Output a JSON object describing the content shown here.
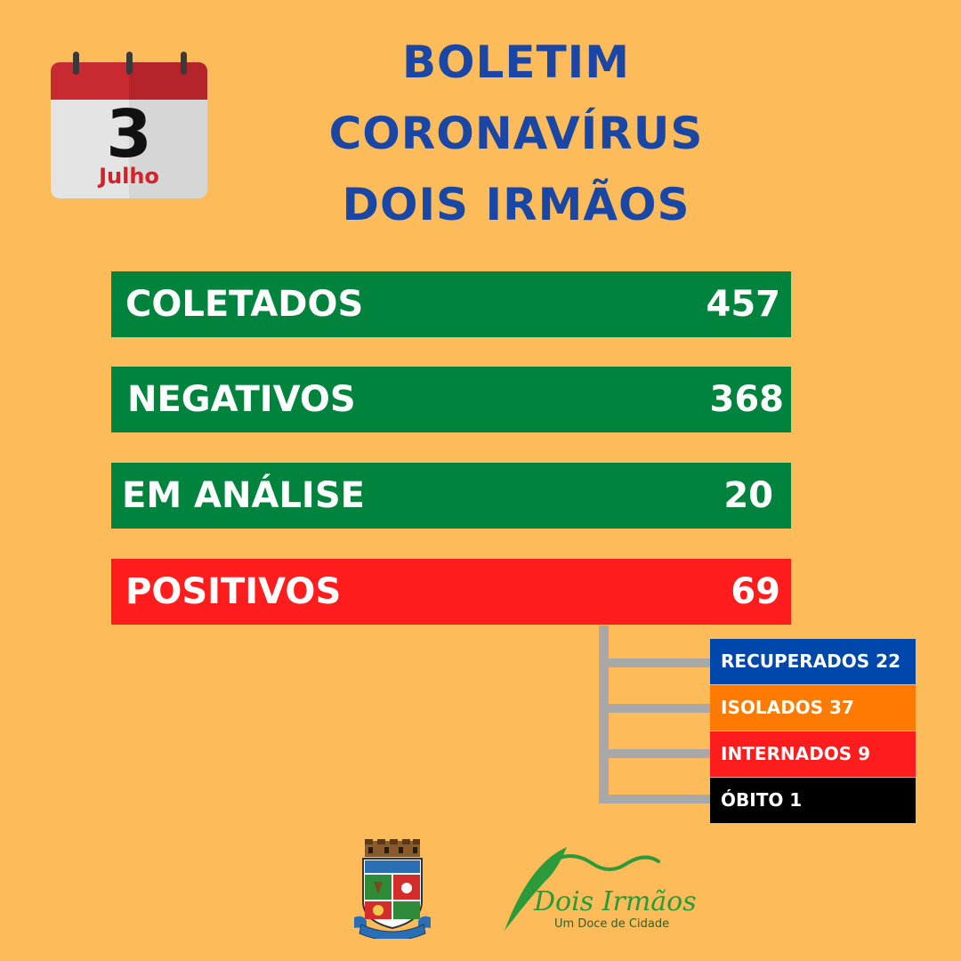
{
  "date": {
    "day": "3",
    "month": "Julho"
  },
  "title": {
    "line1": "BOLETIM",
    "line2": "CORONAVÍRUS",
    "line3": "DOIS IRMÃOS"
  },
  "stats": {
    "coletados": {
      "label": "COLETADOS",
      "value": "457"
    },
    "negativos": {
      "label": "NEGATIVOS",
      "value": "368"
    },
    "em_analise": {
      "label": "EM ANÁLISE",
      "value": "20"
    },
    "positivos": {
      "label": "POSITIVOS",
      "value": "69"
    }
  },
  "positivos_breakdown": {
    "recuperados": "RECUPERADOS 22",
    "isolados": "ISOLADOS  37",
    "internados": "INTERNADOS 9",
    "obito": "ÓBITO 1"
  },
  "brand": {
    "name": "Dois Irmãos",
    "tagline": "Um Doce de Cidade"
  },
  "colors": {
    "background": "#fdbb59",
    "title": "#1a47a6",
    "green_bar": "#00843d",
    "red_bar": "#ff1c1c",
    "recuperados": "#0047ab",
    "isolados": "#ff7a00",
    "internados": "#ff1c1c",
    "obito": "#000000"
  },
  "icons": [
    "calendar-icon",
    "municipal-crest-icon",
    "dois-irmaos-logo"
  ]
}
